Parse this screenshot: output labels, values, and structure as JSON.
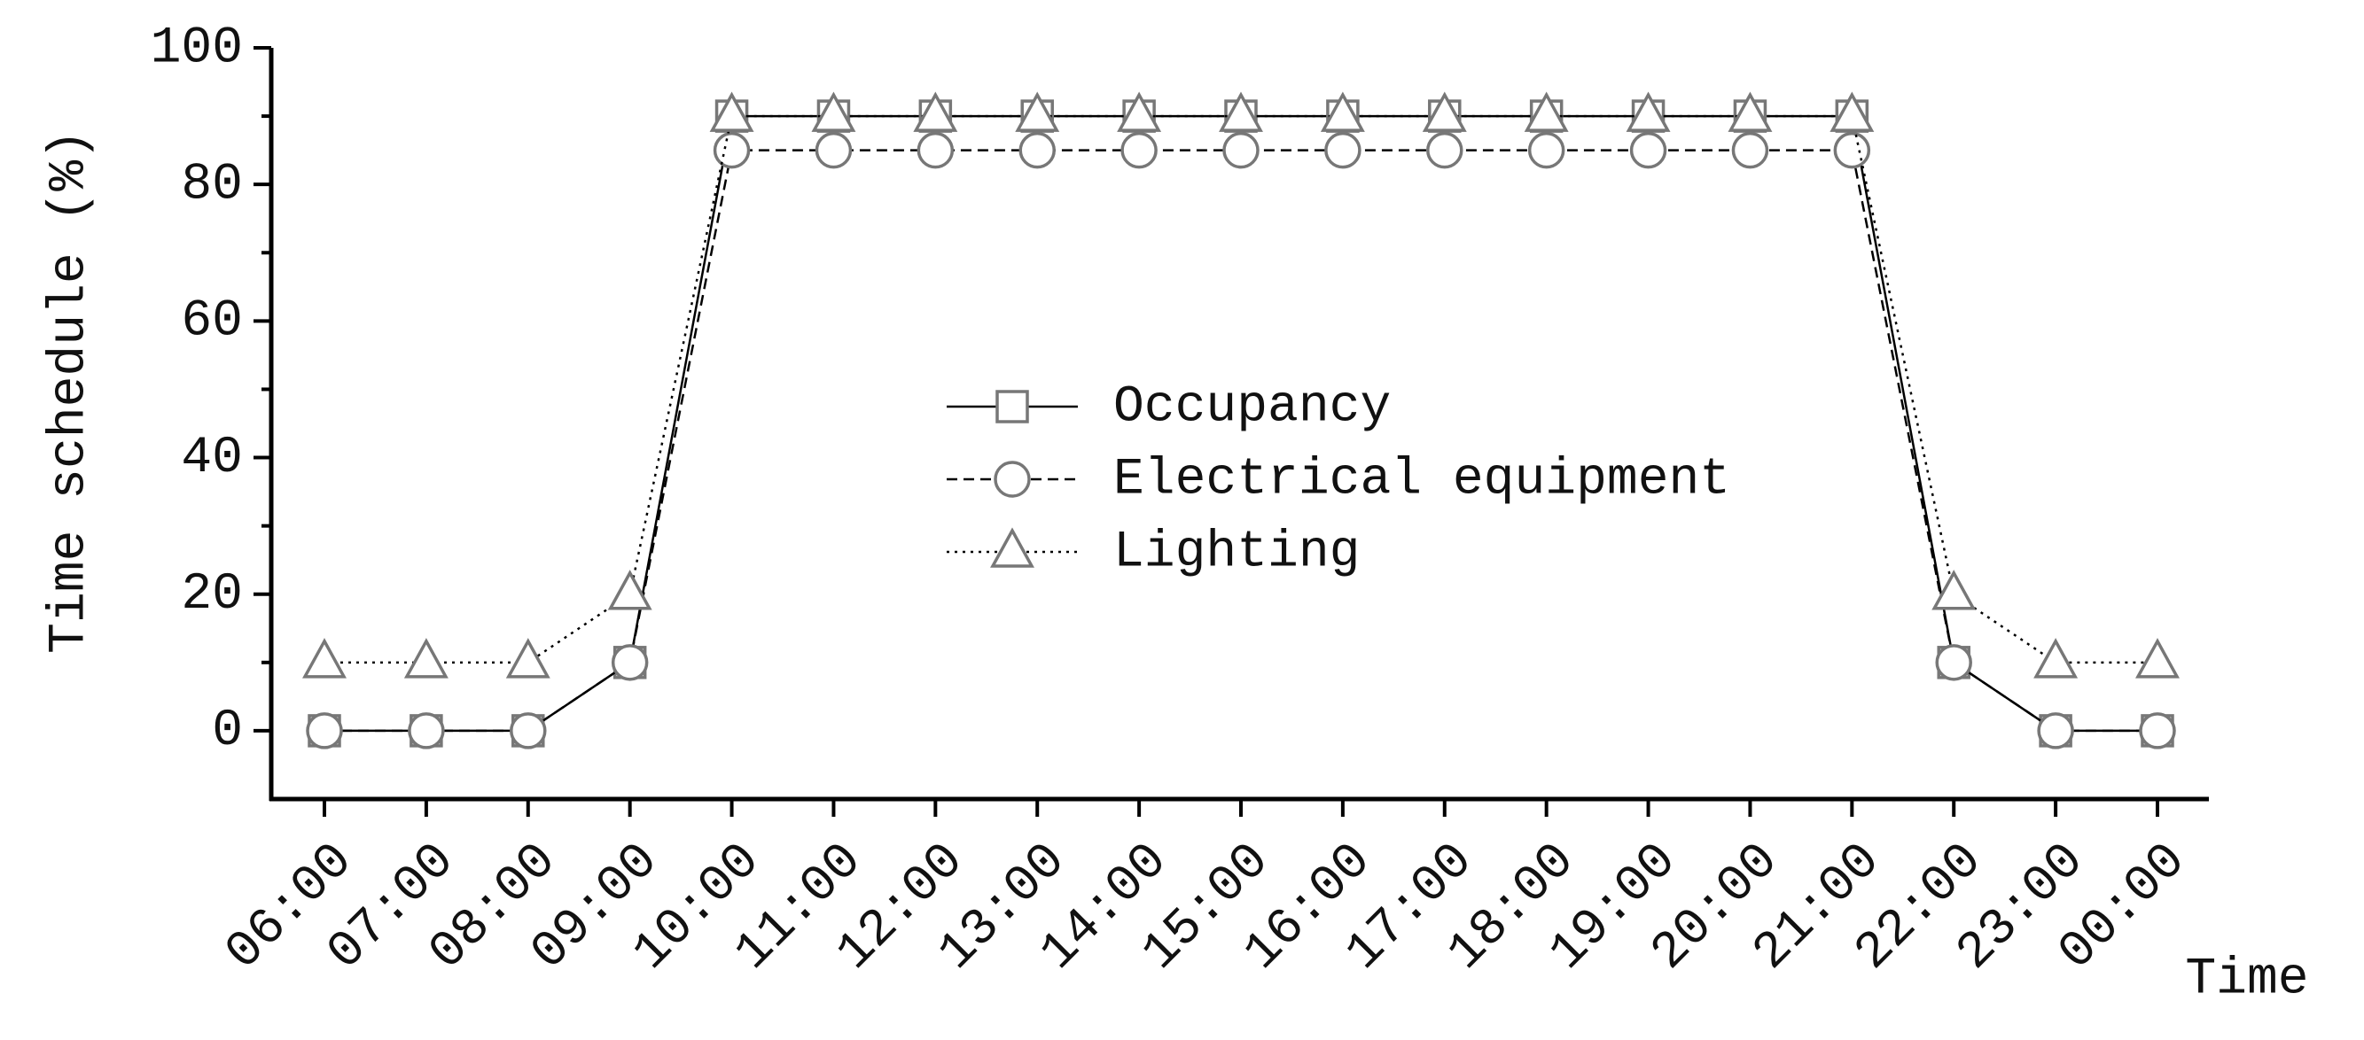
{
  "chart_data": {
    "type": "line",
    "x_label": "Time",
    "y_label": "Time schedule (%)",
    "categories": [
      "06:00",
      "07:00",
      "08:00",
      "09:00",
      "10:00",
      "11:00",
      "12:00",
      "13:00",
      "14:00",
      "15:00",
      "16:00",
      "17:00",
      "18:00",
      "19:00",
      "20:00",
      "21:00",
      "22:00",
      "23:00",
      "00:00"
    ],
    "series": [
      {
        "name": "Occupancy",
        "color": "#777777",
        "linestyle": "solid",
        "marker": "square",
        "values": [
          0,
          0,
          0,
          10,
          90,
          90,
          90,
          90,
          90,
          90,
          90,
          90,
          90,
          90,
          90,
          90,
          10,
          0,
          0
        ]
      },
      {
        "name": "Electrical equipment",
        "color": "#777777",
        "linestyle": "dashed",
        "marker": "circle",
        "values": [
          0,
          0,
          0,
          10,
          85,
          85,
          85,
          85,
          85,
          85,
          85,
          85,
          85,
          85,
          85,
          85,
          10,
          0,
          0
        ]
      },
      {
        "name": "Lighting",
        "color": "#777777",
        "linestyle": "dotted",
        "marker": "triangle",
        "values": [
          10,
          10,
          10,
          20,
          90,
          90,
          90,
          90,
          90,
          90,
          90,
          90,
          90,
          90,
          90,
          90,
          20,
          10,
          10
        ]
      }
    ],
    "ylim": [
      -10,
      100
    ],
    "yticks": [
      0,
      20,
      40,
      60,
      80,
      100
    ],
    "grid": false
  }
}
